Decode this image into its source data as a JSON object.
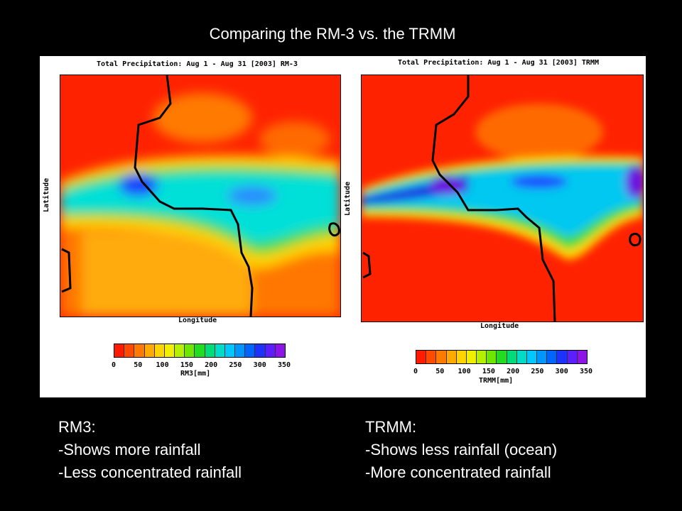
{
  "slide": {
    "title": "Comparing the RM-3 vs. the TRMM"
  },
  "panels": [
    {
      "title": "Total Precipitation: Aug 1 - Aug 31 [2003] RM-3",
      "xlabel": "Longitude",
      "ylabel": "Latitude",
      "colorbar_label": "RM3[mm]"
    },
    {
      "title": "Total Precipitation: Aug 1 - Aug 31 [2003] TRMM",
      "xlabel": "Longitude",
      "ylabel": "Latitude",
      "colorbar_label": "TRMM[mm]"
    }
  ],
  "colorbar": {
    "ticks": [
      "0",
      "50",
      "100",
      "150",
      "200",
      "250",
      "300",
      "350"
    ],
    "colors": [
      "#ff1a00",
      "#ff4a00",
      "#ff7a00",
      "#ffaa00",
      "#ffd400",
      "#f0f000",
      "#b4f000",
      "#6ee600",
      "#22dc22",
      "#00dc78",
      "#00dcc8",
      "#00c8ff",
      "#0096ff",
      "#0064ff",
      "#1e32ff",
      "#5a1eff",
      "#8c14e6"
    ]
  },
  "notes": {
    "left": {
      "heading": "RM3:",
      "line1": "-Shows more rainfall",
      "line2": "-Less concentrated rainfall"
    },
    "right": {
      "heading": "TRMM:",
      "line1": "-Shows less rainfall (ocean)",
      "line2": "-More concentrated rainfall"
    }
  }
}
